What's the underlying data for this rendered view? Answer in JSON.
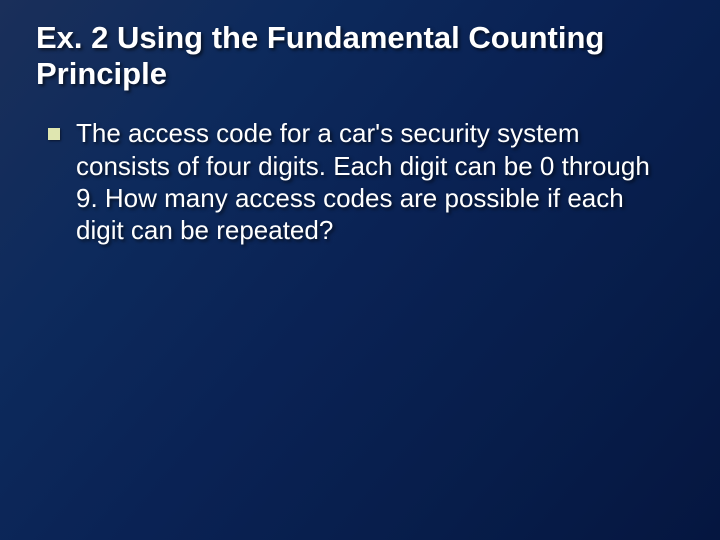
{
  "slide": {
    "title": "Ex. 2  Using the Fundamental Counting Principle",
    "bullets": [
      "The access code for a car's security system consists of four digits.  Each digit can be 0 through 9.  How many access codes are possible if each digit can be repeated?"
    ]
  },
  "style": {
    "background_gradient": [
      "#1a2f5a",
      "#0d2a5c",
      "#0a2254",
      "#071d4a",
      "#051640"
    ],
    "title_color": "#ffffff",
    "title_fontsize": 31,
    "title_weight": 700,
    "body_color": "#ffffff",
    "body_fontsize": 26,
    "bullet_color": "#dfe6b0",
    "bullet_size": 12,
    "text_shadow": "2px 2px 3px rgba(0,0,0,0.6)"
  }
}
